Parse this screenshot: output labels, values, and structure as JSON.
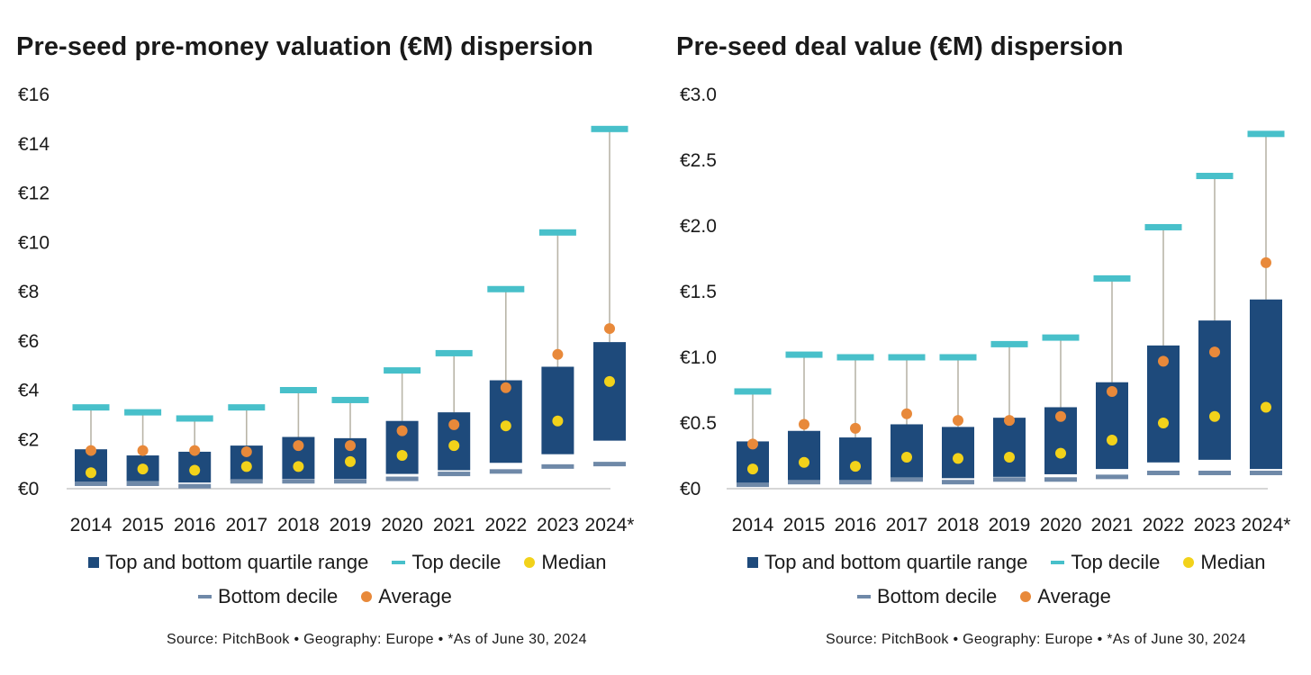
{
  "colors": {
    "quartile": "#1e4a7b",
    "top_decile": "#48c0ca",
    "bottom_decile": "#6f89a8",
    "median": "#f2d21a",
    "average": "#e8893a",
    "whisker": "#b9b5a8",
    "axis": "#c8c8c8"
  },
  "legend": {
    "quartile": "Top and bottom quartile range",
    "top_decile": "Top decile",
    "median": "Median",
    "bottom_decile": "Bottom decile",
    "average": "Average"
  },
  "source_note": "Source: PitchBook  •  Geography: Europe  •  *As of June 30, 2024",
  "chart_data": [
    {
      "type": "box",
      "title": "Pre-seed pre-money valuation (€M) dispersion",
      "categories": [
        "2014",
        "2015",
        "2016",
        "2017",
        "2018",
        "2019",
        "2020",
        "2021",
        "2022",
        "2023",
        "2024*"
      ],
      "ylim": [
        0,
        16
      ],
      "yticks": [
        0,
        2,
        4,
        6,
        8,
        10,
        12,
        14,
        16
      ],
      "ytick_labels": [
        "€0",
        "€2",
        "€4",
        "€6",
        "€8",
        "€10",
        "€12",
        "€14",
        "€16"
      ],
      "legend_position": "bottom",
      "series": [
        {
          "key": "top_decile",
          "values": [
            3.3,
            3.1,
            2.85,
            3.3,
            4.0,
            3.6,
            4.8,
            5.5,
            8.1,
            10.4,
            14.6
          ]
        },
        {
          "key": "q3",
          "values": [
            1.6,
            1.35,
            1.5,
            1.75,
            2.1,
            2.05,
            2.75,
            3.1,
            4.4,
            4.95,
            5.95
          ]
        },
        {
          "key": "q1",
          "values": [
            0.25,
            0.3,
            0.25,
            0.35,
            0.4,
            0.4,
            0.6,
            0.75,
            1.05,
            1.4,
            1.95
          ]
        },
        {
          "key": "bottom_decile",
          "values": [
            0.2,
            0.2,
            0.1,
            0.3,
            0.3,
            0.3,
            0.4,
            0.6,
            0.7,
            0.9,
            1.0
          ]
        },
        {
          "key": "median",
          "values": [
            0.65,
            0.8,
            0.75,
            0.9,
            0.9,
            1.1,
            1.35,
            1.75,
            2.55,
            2.75,
            4.35
          ]
        },
        {
          "key": "average",
          "values": [
            1.55,
            1.55,
            1.55,
            1.5,
            1.75,
            1.75,
            2.35,
            2.6,
            4.1,
            5.45,
            6.5
          ]
        }
      ]
    },
    {
      "type": "box",
      "title": "Pre-seed deal value (€M) dispersion",
      "categories": [
        "2014",
        "2015",
        "2016",
        "2017",
        "2018",
        "2019",
        "2020",
        "2021",
        "2022",
        "2023",
        "2024*"
      ],
      "ylim": [
        0,
        3
      ],
      "yticks": [
        0,
        0.5,
        1,
        1.5,
        2,
        2.5,
        3
      ],
      "ytick_labels": [
        "€0",
        "€0.5",
        "€1.0",
        "€1.5",
        "€2.0",
        "€2.5",
        "€3.0"
      ],
      "legend_position": "bottom",
      "series": [
        {
          "key": "top_decile",
          "values": [
            0.74,
            1.02,
            1.0,
            1.0,
            1.0,
            1.1,
            1.15,
            1.6,
            1.99,
            2.38,
            2.7
          ]
        },
        {
          "key": "q3",
          "values": [
            0.36,
            0.44,
            0.39,
            0.49,
            0.47,
            0.54,
            0.62,
            0.81,
            1.09,
            1.28,
            1.44
          ]
        },
        {
          "key": "q1",
          "values": [
            0.03,
            0.06,
            0.06,
            0.08,
            0.08,
            0.09,
            0.11,
            0.15,
            0.2,
            0.22,
            0.15
          ]
        },
        {
          "key": "bottom_decile",
          "values": [
            0.03,
            0.05,
            0.05,
            0.07,
            0.05,
            0.07,
            0.07,
            0.09,
            0.12,
            0.12,
            0.12
          ]
        },
        {
          "key": "median",
          "values": [
            0.15,
            0.2,
            0.17,
            0.24,
            0.23,
            0.24,
            0.27,
            0.37,
            0.5,
            0.55,
            0.62
          ]
        },
        {
          "key": "average",
          "values": [
            0.34,
            0.49,
            0.46,
            0.57,
            0.52,
            0.52,
            0.55,
            0.74,
            0.97,
            1.04,
            1.72
          ]
        }
      ]
    }
  ]
}
